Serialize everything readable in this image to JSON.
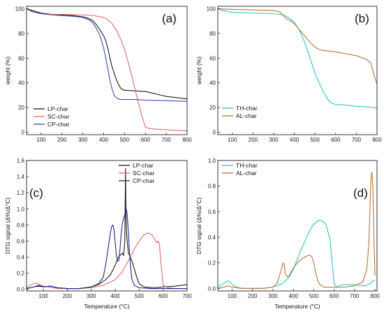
{
  "chart_data": [
    {
      "panel": "(a)",
      "type": "line",
      "ylabel": "weight (%)",
      "xlabel": "",
      "xlim": [
        30,
        800
      ],
      "ylim": [
        -2,
        102
      ],
      "xticks": [
        100,
        200,
        300,
        400,
        500,
        600,
        700,
        800
      ],
      "yticks": [
        0,
        20,
        40,
        60,
        80,
        100
      ],
      "legend_position": "bottom-left",
      "series": [
        {
          "name": "LP-char",
          "color": "#1a1a1a",
          "x": [
            30,
            60,
            100,
            150,
            200,
            250,
            300,
            330,
            350,
            370,
            385,
            400,
            410,
            420,
            430,
            440,
            450,
            460,
            470,
            480,
            490,
            500,
            550,
            600,
            650,
            700,
            750,
            800
          ],
          "y": [
            100,
            98.5,
            96.5,
            95.5,
            95,
            94.5,
            93.5,
            92,
            90,
            86,
            82,
            78,
            74,
            68,
            60,
            53,
            48,
            43,
            39,
            36,
            34.5,
            34,
            33.5,
            33,
            31,
            29,
            28,
            27
          ]
        },
        {
          "name": "SC-char",
          "color": "#e06b6b",
          "x": [
            30,
            60,
            100,
            150,
            200,
            250,
            300,
            350,
            400,
            420,
            440,
            460,
            480,
            500,
            520,
            540,
            560,
            580,
            600,
            620,
            650,
            700,
            750,
            800
          ],
          "y": [
            100,
            97.5,
            96,
            95.5,
            95.5,
            95.2,
            95,
            94.5,
            93,
            91,
            88,
            83,
            76,
            67,
            55,
            42,
            28,
            15,
            4,
            3,
            2.5,
            2,
            1.5,
            1
          ]
        },
        {
          "name": "CP-char",
          "color": "#3a4fb5",
          "x": [
            30,
            60,
            100,
            150,
            200,
            250,
            300,
            330,
            350,
            365,
            380,
            390,
            400,
            410,
            420,
            430,
            440,
            450,
            460,
            470,
            480,
            500,
            550,
            600,
            700,
            800
          ],
          "y": [
            100,
            97.5,
            96,
            95,
            94.5,
            94,
            93,
            91,
            88,
            84,
            79,
            74,
            68,
            60,
            51,
            42,
            35,
            30,
            28,
            27,
            26.5,
            26.5,
            26.5,
            26,
            25.5,
            25
          ]
        }
      ]
    },
    {
      "panel": "(b)",
      "type": "line",
      "ylabel": "weight (%)",
      "xlabel": "",
      "xlim": [
        30,
        800
      ],
      "ylim": [
        -2,
        102
      ],
      "xticks": [
        100,
        200,
        300,
        400,
        500,
        600,
        700,
        800
      ],
      "yticks": [
        0,
        20,
        40,
        60,
        80,
        100
      ],
      "legend_position": "bottom-left",
      "series": [
        {
          "name": "TH-char",
          "color": "#2ec4c4",
          "x": [
            30,
            60,
            100,
            150,
            200,
            250,
            300,
            330,
            360,
            380,
            400,
            420,
            440,
            460,
            480,
            500,
            520,
            540,
            560,
            580,
            600,
            650,
            700,
            750,
            800
          ],
          "y": [
            100,
            98.5,
            97,
            96.8,
            96.5,
            96.3,
            96,
            95.5,
            94,
            92,
            89,
            84,
            77,
            68,
            58,
            48,
            40,
            33,
            27,
            23.5,
            22.5,
            22,
            21,
            20.5,
            19.5
          ]
        },
        {
          "name": "AL-char",
          "color": "#b87333",
          "x": [
            30,
            100,
            150,
            200,
            250,
            300,
            330,
            350,
            360,
            370,
            380,
            400,
            420,
            440,
            460,
            480,
            500,
            520,
            550,
            600,
            650,
            700,
            750,
            770,
            780,
            790,
            800
          ],
          "y": [
            100,
            99.5,
            99.3,
            99,
            98.8,
            98.5,
            97.5,
            94,
            92,
            91,
            90.5,
            88,
            84,
            80,
            76,
            72,
            69,
            67,
            66,
            65,
            63.5,
            62,
            59,
            56,
            50,
            44,
            39
          ]
        }
      ]
    },
    {
      "panel": "(c)",
      "type": "line",
      "ylabel": "DTG signal (Δ%/Δ°C)",
      "xlabel": "Temperature (°C)",
      "xlim": [
        30,
        700
      ],
      "ylim": [
        -0.02,
        1.6
      ],
      "xticks": [
        100,
        200,
        300,
        400,
        500,
        600,
        700
      ],
      "yticks": [
        0.0,
        0.2,
        0.4,
        0.6,
        0.8,
        1.0,
        1.2,
        1.4,
        1.6
      ],
      "legend_position": "top-right",
      "series": [
        {
          "name": "LP-char",
          "color": "#1a1a1a",
          "x": [
            30,
            60,
            80,
            100,
            130,
            160,
            200,
            250,
            300,
            330,
            360,
            380,
            400,
            410,
            420,
            430,
            435,
            440,
            443,
            445,
            447,
            450,
            455,
            460,
            470,
            480,
            490,
            500,
            520,
            560,
            600,
            650,
            700
          ],
          "y": [
            0.01,
            0.03,
            0.04,
            0.03,
            0.04,
            0.02,
            0.01,
            0.01,
            0.03,
            0.06,
            0.12,
            0.18,
            0.3,
            0.38,
            0.42,
            0.45,
            0.42,
            0.6,
            1.5,
            0.9,
            0.7,
            0.6,
            0.45,
            0.42,
            0.35,
            0.25,
            0.15,
            0.07,
            0.03,
            0.02,
            0.03,
            0.04,
            0.06
          ]
        },
        {
          "name": "SC-char",
          "color": "#e06b6b",
          "x": [
            30,
            50,
            70,
            90,
            120,
            160,
            200,
            250,
            300,
            350,
            400,
            430,
            460,
            480,
            500,
            520,
            540,
            555,
            565,
            575,
            580,
            585,
            590,
            600,
            620,
            660,
            700
          ],
          "y": [
            0.02,
            0.06,
            0.08,
            0.05,
            0.03,
            0.01,
            0.01,
            0.01,
            0.02,
            0.05,
            0.12,
            0.22,
            0.38,
            0.5,
            0.6,
            0.68,
            0.7,
            0.67,
            0.62,
            0.58,
            0.6,
            0.55,
            0.35,
            0.05,
            0.02,
            0.01,
            0.01
          ]
        },
        {
          "name": "CP-char",
          "color": "#22228a",
          "x": [
            30,
            60,
            80,
            100,
            130,
            160,
            200,
            250,
            300,
            330,
            350,
            360,
            370,
            380,
            385,
            390,
            395,
            400,
            405,
            410,
            415,
            420,
            425,
            430,
            435,
            440,
            443,
            446,
            450,
            455,
            460,
            465,
            470,
            480,
            500,
            550,
            600,
            650,
            700
          ],
          "y": [
            0.01,
            0.03,
            0.05,
            0.03,
            0.04,
            0.02,
            0.01,
            0.01,
            0.03,
            0.07,
            0.15,
            0.3,
            0.5,
            0.7,
            0.78,
            0.8,
            0.74,
            0.58,
            0.42,
            0.35,
            0.36,
            0.5,
            0.7,
            0.82,
            0.88,
            0.93,
            0.97,
            1.0,
            0.93,
            0.7,
            0.45,
            0.25,
            0.12,
            0.05,
            0.02,
            0.01,
            0.01,
            0.01,
            0.01
          ]
        }
      ]
    },
    {
      "panel": "(d)",
      "type": "line",
      "ylabel": "DTG signal (Δ%/Δ°C)",
      "xlabel": "Temperature (°C)",
      "xlim": [
        30,
        810
      ],
      "ylim": [
        -0.02,
        1.0
      ],
      "xticks": [
        100,
        200,
        300,
        400,
        500,
        600,
        700,
        800
      ],
      "yticks": [
        0.0,
        0.2,
        0.4,
        0.6,
        0.8,
        1.0
      ],
      "legend_position": "top-left",
      "series": [
        {
          "name": "TH-char",
          "color": "#2ec4c4",
          "x": [
            30,
            50,
            70,
            80,
            90,
            100,
            120,
            150,
            200,
            250,
            300,
            350,
            380,
            400,
            420,
            440,
            460,
            480,
            500,
            520,
            540,
            560,
            580,
            590,
            600,
            610,
            620,
            650,
            700,
            750,
            780,
            790,
            800
          ],
          "y": [
            0.01,
            0.03,
            0.05,
            0.06,
            0.05,
            0.03,
            0.01,
            0.0,
            0.0,
            0.0,
            0.01,
            0.04,
            0.09,
            0.15,
            0.23,
            0.31,
            0.38,
            0.45,
            0.5,
            0.53,
            0.53,
            0.5,
            0.38,
            0.2,
            0.04,
            0.01,
            0.02,
            0.03,
            0.03,
            0.02,
            0.04,
            0.06,
            0.06
          ]
        },
        {
          "name": "AL-char",
          "color": "#b87333",
          "x": [
            30,
            60,
            80,
            100,
            150,
            200,
            250,
            300,
            320,
            340,
            350,
            355,
            360,
            370,
            380,
            390,
            400,
            420,
            440,
            460,
            480,
            490,
            500,
            510,
            520,
            530,
            550,
            600,
            650,
            700,
            740,
            760,
            770,
            775,
            780,
            785,
            790,
            795,
            800
          ],
          "y": [
            0.0,
            0.01,
            0.02,
            0.01,
            0.0,
            0.0,
            0.0,
            0.01,
            0.04,
            0.14,
            0.2,
            0.19,
            0.12,
            0.09,
            0.1,
            0.13,
            0.16,
            0.2,
            0.23,
            0.25,
            0.26,
            0.25,
            0.2,
            0.12,
            0.06,
            0.03,
            0.01,
            0.01,
            0.01,
            0.02,
            0.05,
            0.15,
            0.35,
            0.6,
            0.85,
            0.91,
            0.78,
            0.4,
            0.1
          ]
        }
      ]
    }
  ]
}
